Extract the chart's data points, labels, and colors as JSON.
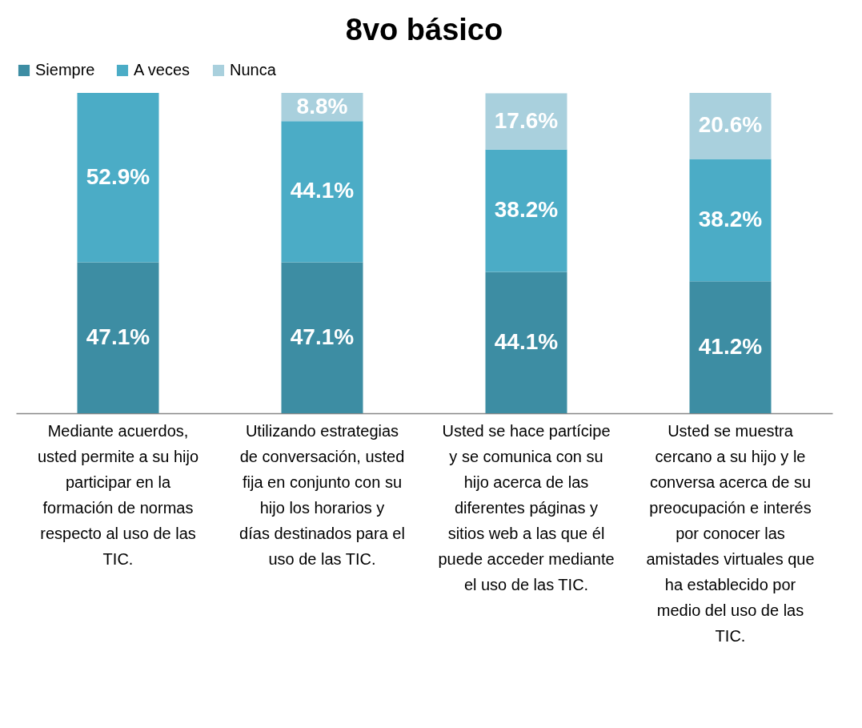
{
  "chart_data": {
    "type": "bar",
    "title": "8vo básico",
    "stacked": true,
    "legend": "top",
    "tick_labels": "x",
    "ylim": [
      0,
      100
    ],
    "categories": [
      "Mediante acuerdos, usted permite a su hijo participar en la formación de normas respecto al uso de las TIC.",
      "Utilizando estrategias de conversación, usted fija en conjunto con su hijo los horarios y días destinados para el uso de las TIC.",
      "Usted se hace partícipe y se comunica con su hijo acerca de las diferentes páginas y sitios web a las que él puede acceder mediante el uso de las TIC.",
      "Usted se muestra cercano a su hijo y le conversa acerca de su preocupación e interés por conocer las amistades virtuales que ha establecido por medio del uso de las TIC."
    ],
    "series": [
      {
        "name": "Siempre",
        "color": "#3d8da3",
        "values": [
          47.1,
          47.1,
          44.1,
          41.2
        ],
        "value_labels": [
          "47.1%",
          "47.1%",
          "44.1%",
          "41.2%"
        ]
      },
      {
        "name": "A veces",
        "color": "#4bacc6",
        "values": [
          52.9,
          44.1,
          38.2,
          38.2
        ],
        "value_labels": [
          "52.9%",
          "44.1%",
          "38.2%",
          "38.2%"
        ]
      },
      {
        "name": "Nunca",
        "color": "#a9d0dd",
        "values": [
          null,
          8.8,
          17.6,
          20.6
        ],
        "value_labels": [
          null,
          "8.8%",
          "17.6%",
          "20.6%"
        ]
      }
    ]
  }
}
